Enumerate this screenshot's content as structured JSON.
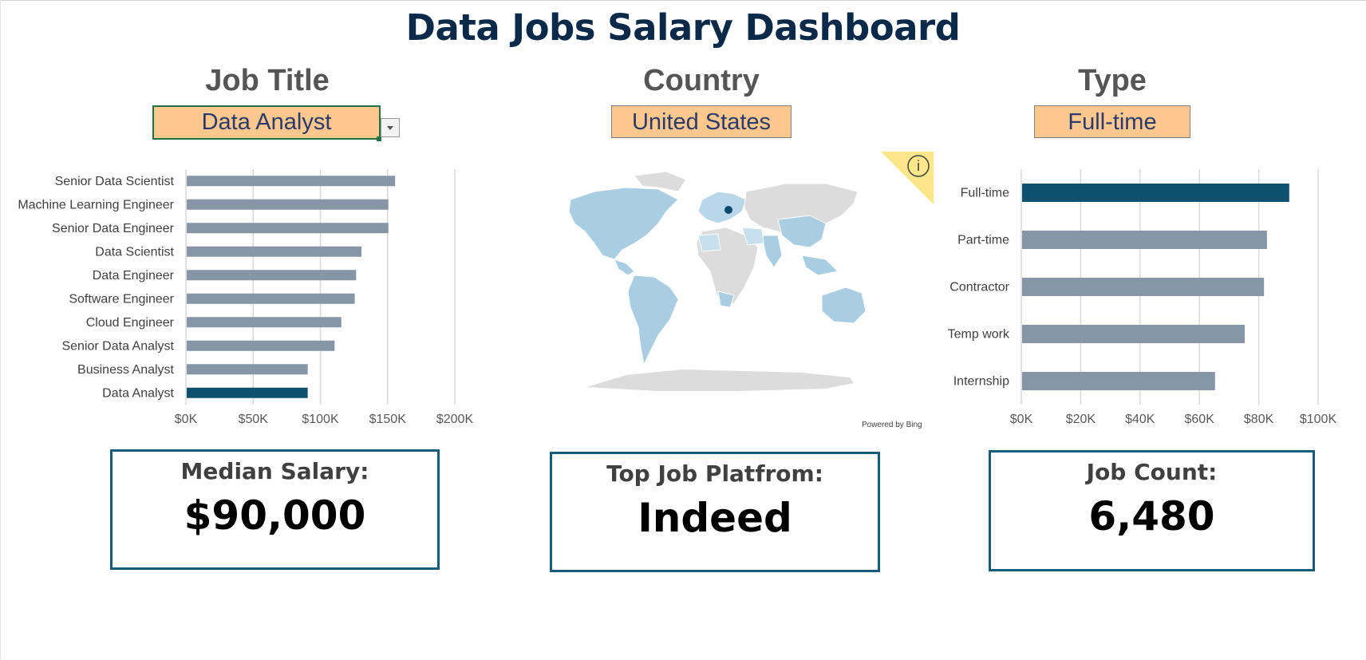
{
  "title": "Data Jobs Salary Dashboard",
  "filters": {
    "job_title": {
      "label": "Job Title",
      "value": "Data Analyst"
    },
    "country": {
      "label": "Country",
      "value": "United States"
    },
    "type": {
      "label": "Type",
      "value": "Full-time"
    }
  },
  "map": {
    "powered_by": "Powered by Bing",
    "info_icon": "info-icon",
    "highlight_color": "#0b4a6e"
  },
  "kpis": {
    "median_salary": {
      "label": "Median Salary:",
      "value": "$90,000"
    },
    "top_platform": {
      "label": "Top Job Platfrom:",
      "value": "Indeed"
    },
    "job_count": {
      "label": "Job Count:",
      "value": "6,480"
    }
  },
  "colors": {
    "bar": "#8796a7",
    "highlight": "#10506f",
    "kpi_border": "#1a5a7a",
    "filter_fill": "#fdc88e"
  },
  "chart_data": [
    {
      "type": "bar",
      "orientation": "horizontal",
      "categories": [
        "Senior Data Scientist",
        "Machine Learning Engineer",
        "Senior Data Engineer",
        "Data Scientist",
        "Data Engineer",
        "Software Engineer",
        "Cloud Engineer",
        "Senior Data Analyst",
        "Business Analyst",
        "Data Analyst"
      ],
      "values": [
        155000,
        150000,
        150000,
        130000,
        126000,
        125000,
        115000,
        110000,
        90000,
        90000
      ],
      "highlight": "Data Analyst",
      "tick_labels": [
        "$0K",
        "$50K",
        "$100K",
        "$150K",
        "$200K"
      ],
      "xlim": [
        0,
        200000
      ],
      "grid": true
    },
    {
      "type": "bar",
      "orientation": "horizontal",
      "categories": [
        "Full-time",
        "Part-time",
        "Contractor",
        "Temp work",
        "Internship"
      ],
      "values": [
        90000,
        82500,
        81500,
        75000,
        65000
      ],
      "highlight": "Full-time",
      "tick_labels": [
        "$0K",
        "$20K",
        "$40K",
        "$60K",
        "$80K",
        "$100K"
      ],
      "xlim": [
        0,
        100000
      ],
      "grid": true
    }
  ]
}
